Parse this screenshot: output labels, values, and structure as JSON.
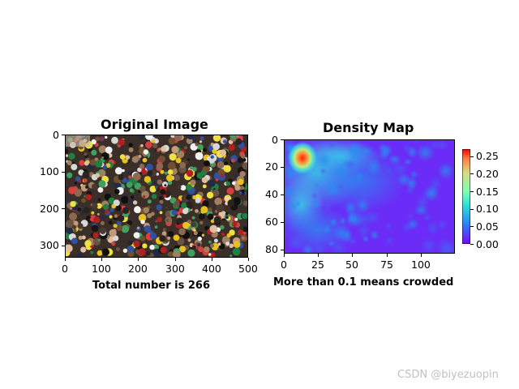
{
  "watermark": "CSDN @biyezuopin",
  "chart_data": [
    {
      "type": "image",
      "title": "Original Image",
      "xlabel": "Total number is 266",
      "xlim": [
        0,
        500
      ],
      "ylim": [
        333,
        0
      ],
      "xticks": [
        0,
        100,
        200,
        300,
        400,
        500
      ],
      "yticks": [
        0,
        100,
        200,
        300
      ],
      "content": "photo of a dense crowd of people"
    },
    {
      "type": "heatmap",
      "title": "Density Map",
      "xlabel": "More than 0.1 means crowded",
      "xlim": [
        0,
        125
      ],
      "ylim": [
        83,
        0
      ],
      "xticks": [
        0,
        25,
        50,
        75,
        100
      ],
      "yticks": [
        0,
        20,
        40,
        60,
        80
      ],
      "colormap": "rainbow",
      "colorbar": {
        "range": [
          0,
          0.27
        ],
        "ticks": [
          "0.00",
          "0.05",
          "0.10",
          "0.15",
          "0.20",
          "0.25"
        ]
      },
      "hotspot": {
        "x": 12,
        "y": 12,
        "value": 0.27
      }
    }
  ]
}
